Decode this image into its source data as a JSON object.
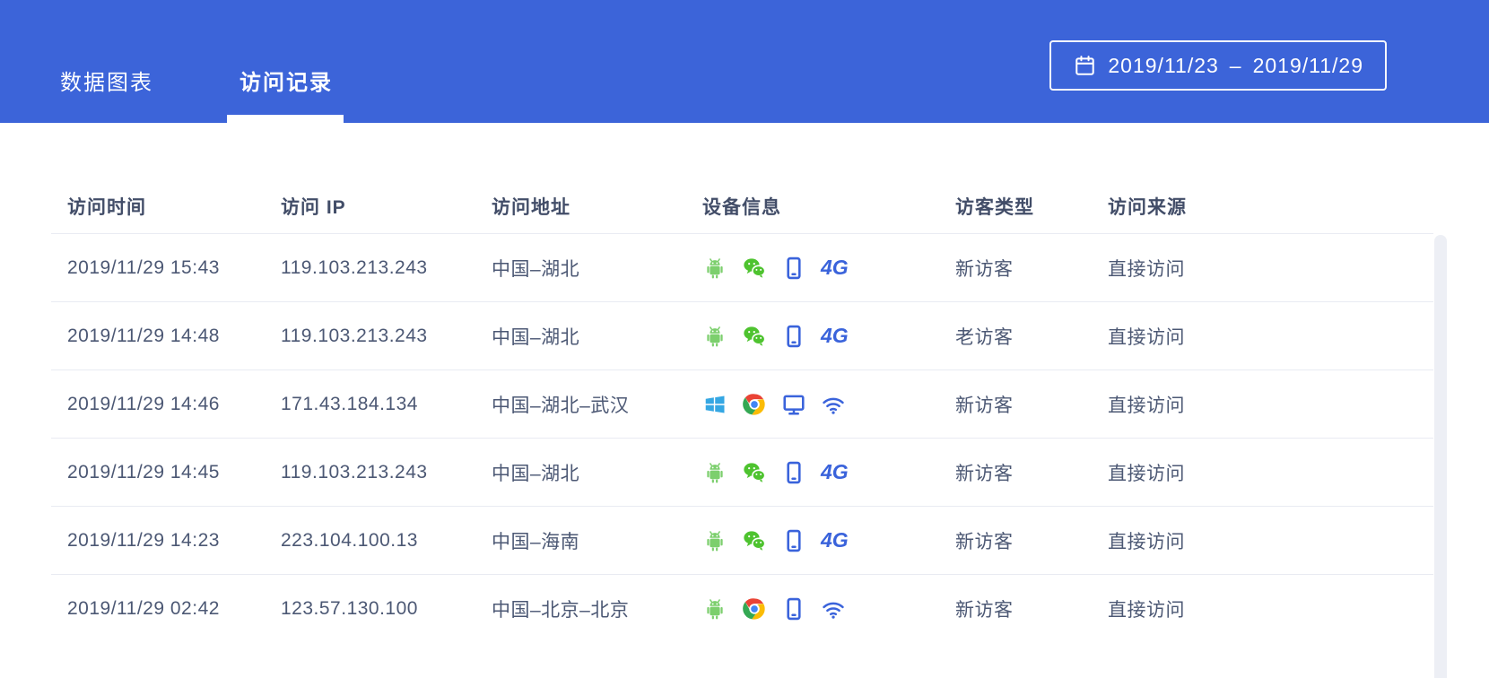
{
  "header": {
    "tabs": [
      {
        "id": "data-charts",
        "label": "数据图表",
        "active": false
      },
      {
        "id": "visit-log",
        "label": "访问记录",
        "active": true
      }
    ],
    "date_range": {
      "start": "2019/11/23",
      "separator": "–",
      "end": "2019/11/29"
    }
  },
  "table": {
    "columns": [
      "访问时间",
      "访问 IP",
      "访问地址",
      "设备信息",
      "访客类型",
      "访问来源"
    ],
    "rows": [
      {
        "time": "2019/11/29 15:43",
        "ip": "119.103.213.243",
        "location": "中国–湖北",
        "devices": [
          "android",
          "wechat",
          "mobile",
          "4g"
        ],
        "visitor_type": "新访客",
        "source": "直接访问"
      },
      {
        "time": "2019/11/29 14:48",
        "ip": "119.103.213.243",
        "location": "中国–湖北",
        "devices": [
          "android",
          "wechat",
          "mobile",
          "4g"
        ],
        "visitor_type": "老访客",
        "source": "直接访问"
      },
      {
        "time": "2019/11/29 14:46",
        "ip": "171.43.184.134",
        "location": "中国–湖北–武汉",
        "devices": [
          "windows",
          "chrome",
          "desktop",
          "wifi"
        ],
        "visitor_type": "新访客",
        "source": "直接访问"
      },
      {
        "time": "2019/11/29 14:45",
        "ip": "119.103.213.243",
        "location": "中国–湖北",
        "devices": [
          "android",
          "wechat",
          "mobile",
          "4g"
        ],
        "visitor_type": "新访客",
        "source": "直接访问"
      },
      {
        "time": "2019/11/29 14:23",
        "ip": "223.104.100.13",
        "location": "中国–海南",
        "devices": [
          "android",
          "wechat",
          "mobile",
          "4g"
        ],
        "visitor_type": "新访客",
        "source": "直接访问"
      },
      {
        "time": "2019/11/29 02:42",
        "ip": "123.57.130.100",
        "location": "中国–北京–北京",
        "devices": [
          "android",
          "chrome",
          "mobile",
          "wifi"
        ],
        "visitor_type": "新访客",
        "source": "直接访问"
      }
    ]
  },
  "icons": {
    "fourg_label": "4G"
  },
  "colors": {
    "accent_blue": "#3C64D9",
    "icon_blue": "#3A63DB",
    "android_green": "#7CCF6D",
    "wechat_green": "#4EC32F",
    "windows_blue": "#35A7E3",
    "chrome_red": "#EA4335",
    "chrome_green": "#34A853",
    "chrome_yellow": "#FBBC05",
    "chrome_blue": "#4285F4"
  }
}
